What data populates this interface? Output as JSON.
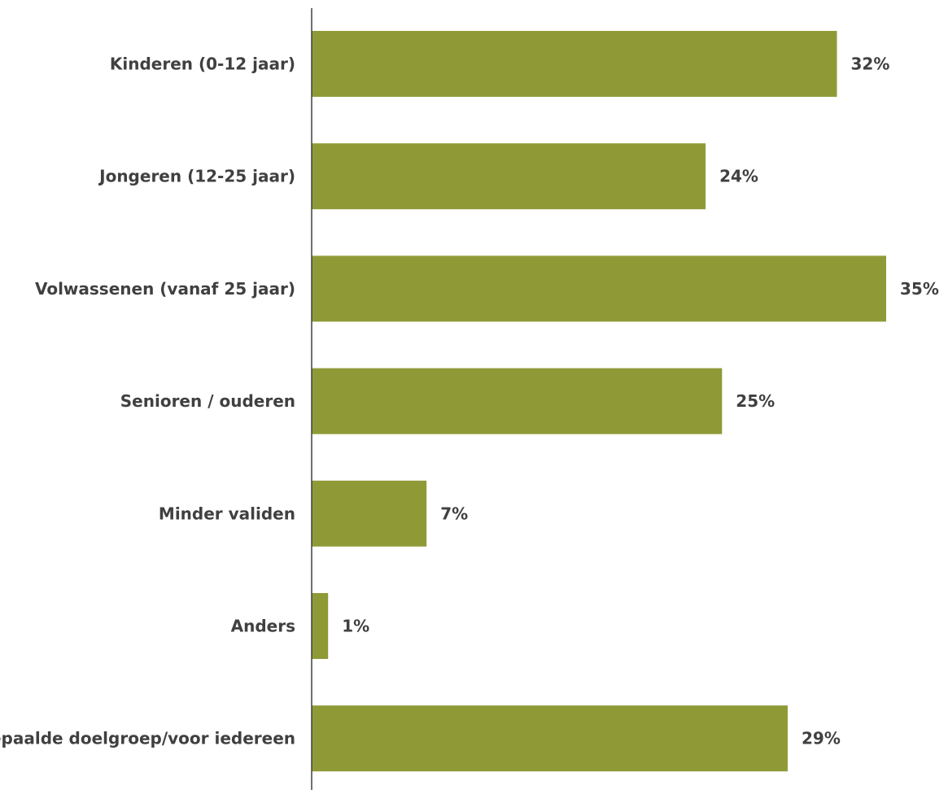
{
  "chart_data": {
    "type": "bar",
    "orientation": "horizontal",
    "categories": [
      "Kinderen (0-12 jaar)",
      "Jongeren (12-25 jaar)",
      "Volwassenen (vanaf 25 jaar)",
      "Senioren / ouderen",
      "Minder validen",
      "Anders",
      "Geen bepaalde doelgroep/voor iedereen"
    ],
    "values": [
      32,
      24,
      35,
      25,
      7,
      1,
      29
    ],
    "value_labels": [
      "32%",
      "24%",
      "35%",
      "25%",
      "7%",
      "1%",
      "29%"
    ],
    "xlim": [
      0,
      35
    ],
    "grid": false,
    "legend": "none",
    "colors": {
      "bar": "#8f9a37",
      "axis": "#404040",
      "text": "#404040"
    }
  }
}
